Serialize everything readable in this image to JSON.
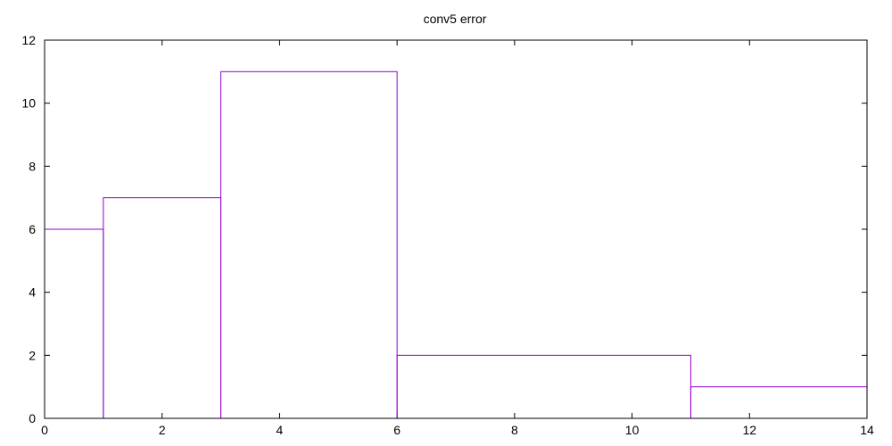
{
  "chart_data": {
    "type": "bar",
    "title": "conv5 error",
    "xlabel": "",
    "ylabel": "",
    "xlim": [
      0,
      14
    ],
    "ylim": [
      0,
      12
    ],
    "x_ticks": [
      0,
      2,
      4,
      6,
      8,
      10,
      12,
      14
    ],
    "y_ticks": [
      0,
      2,
      4,
      6,
      8,
      10,
      12
    ],
    "grid": false,
    "style": "histogram-steps",
    "color": "#9400d3",
    "bins": [
      {
        "x_start": 0,
        "x_end": 1,
        "value": 6
      },
      {
        "x_start": 1,
        "x_end": 3,
        "value": 7
      },
      {
        "x_start": 3,
        "x_end": 6,
        "value": 11
      },
      {
        "x_start": 6,
        "x_end": 11,
        "value": 2
      },
      {
        "x_start": 11,
        "x_end": 14,
        "value": 1
      }
    ]
  }
}
